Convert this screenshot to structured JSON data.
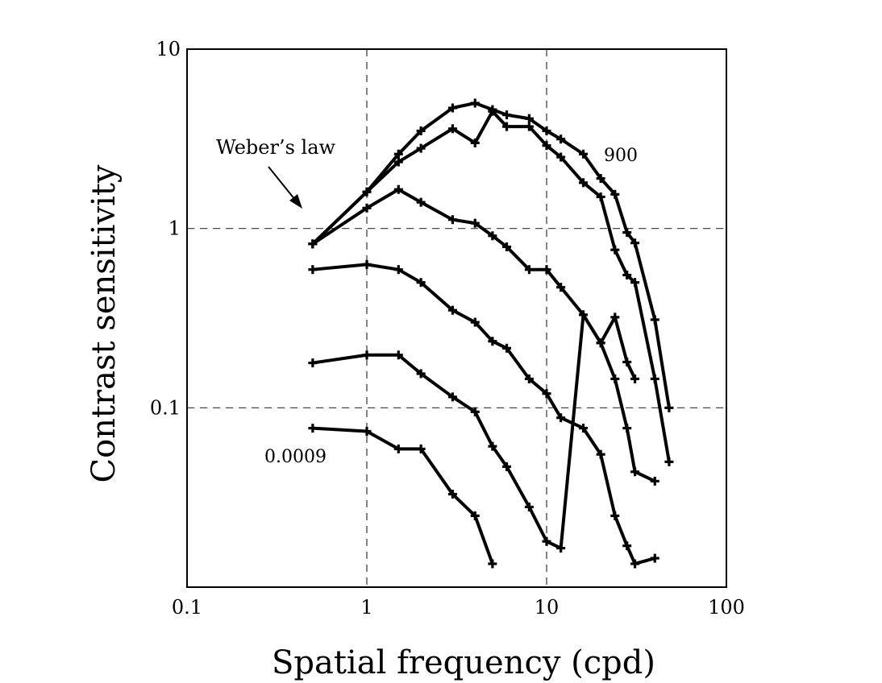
{
  "chart_data": {
    "type": "line",
    "xlabel": "Spatial frequency (cpd)",
    "ylabel": "Contrast sensitivity",
    "xscale": "log",
    "yscale": "log",
    "xlim": [
      0.1,
      100
    ],
    "ylim": [
      0.01,
      10
    ],
    "x_ticks": [
      0.1,
      1,
      10,
      100
    ],
    "x_tick_labels": [
      "0.1",
      "1",
      "10",
      "100"
    ],
    "y_ticks": [
      0.1,
      1,
      10
    ],
    "y_tick_labels": [
      "0.1",
      "1",
      "10"
    ],
    "grid": true,
    "annotations": {
      "webers_law": "Weber’s law",
      "top_curve": "900",
      "bottom_curve": "0.0009"
    },
    "series": [
      {
        "x": [
          0.5,
          1.0,
          1.5,
          2.0,
          3.0,
          4.0,
          5.0,
          6.0,
          8.0,
          10.0,
          12.0,
          16.0,
          20.0,
          24.0,
          28.0,
          31.0,
          40.0,
          48.0
        ],
        "y": [
          0.82,
          1.6,
          2.6,
          3.5,
          4.7,
          5.0,
          4.6,
          4.3,
          4.1,
          3.5,
          3.15,
          2.6,
          1.9,
          1.55,
          0.95,
          0.83,
          0.31,
          0.1
        ]
      },
      {
        "x": [
          0.5,
          1.0,
          1.5,
          2.0,
          3.0,
          4.0,
          5.0,
          6.0,
          8.0,
          10.0,
          12.0,
          16.0,
          20.0,
          24.0,
          28.0,
          31.0,
          40.0,
          48.0
        ],
        "y": [
          0.82,
          1.6,
          2.35,
          2.8,
          3.6,
          3.0,
          4.5,
          3.7,
          3.7,
          2.9,
          2.5,
          1.8,
          1.5,
          0.76,
          0.55,
          0.5,
          0.145,
          0.05
        ]
      },
      {
        "x": [
          0.5,
          1.0,
          1.5,
          2.0,
          3.0,
          4.0,
          5.0,
          6.0,
          8.0,
          10.0,
          12.0,
          16.0,
          20.0,
          24.0,
          28.0,
          31.0,
          40.0
        ],
        "y": [
          0.82,
          1.3,
          1.65,
          1.4,
          1.12,
          1.07,
          0.91,
          0.79,
          0.59,
          0.59,
          0.47,
          0.33,
          0.23,
          0.145,
          0.077,
          0.044,
          0.039
        ]
      },
      {
        "x": [
          0.5,
          1.0,
          1.5,
          2.0,
          3.0,
          4.0,
          5.0,
          6.0,
          8.0,
          10.0,
          12.0,
          16.0,
          20.0,
          24.0,
          28.0,
          31.0,
          40.0
        ],
        "y": [
          0.59,
          0.63,
          0.59,
          0.5,
          0.35,
          0.3,
          0.235,
          0.215,
          0.145,
          0.12,
          0.088,
          0.077,
          0.055,
          0.025,
          0.017,
          0.0135,
          0.0145
        ]
      },
      {
        "x": [
          0.5,
          1.0,
          1.5,
          2.0,
          3.0,
          4.0,
          5.0,
          6.0,
          8.0,
          10.0,
          12.0,
          16.0,
          20.0,
          24.0,
          28.0,
          31.0
        ],
        "y": [
          0.178,
          0.197,
          0.197,
          0.155,
          0.115,
          0.095,
          0.061,
          0.047,
          0.028,
          0.018,
          0.0165,
          0.33,
          0.23,
          0.32,
          0.18,
          0.145
        ]
      },
      {
        "x": [
          0.5,
          1.0,
          1.5,
          2.0,
          3.0,
          4.0,
          5.0
        ],
        "y": [
          0.077,
          0.074,
          0.059,
          0.059,
          0.033,
          0.025,
          0.0135
        ]
      }
    ]
  }
}
